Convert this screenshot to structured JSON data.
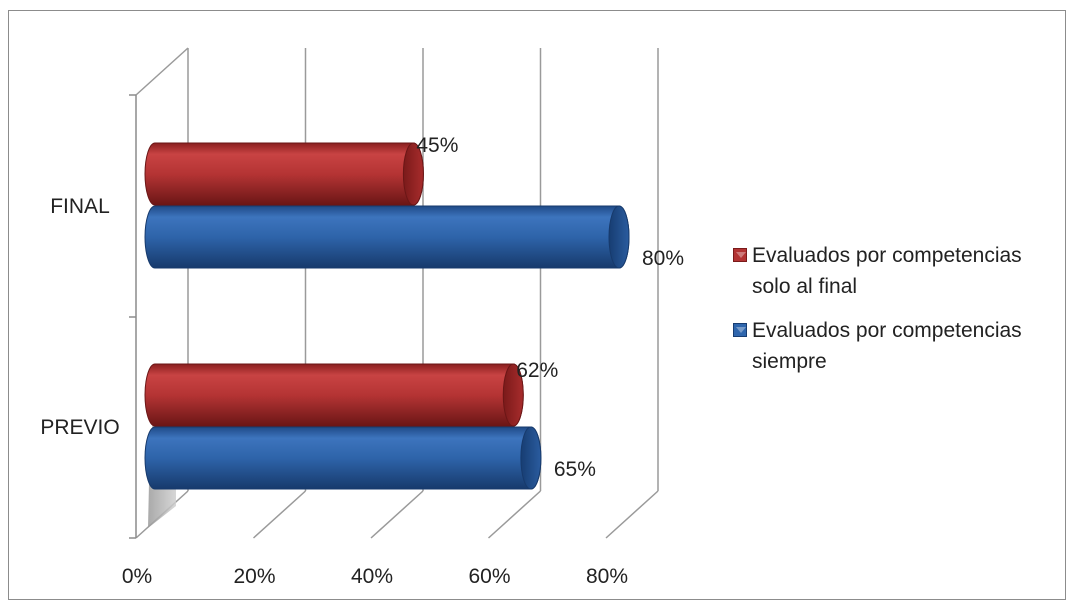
{
  "chart_data": {
    "type": "bar",
    "orientation": "horizontal",
    "style": "3d-cylinder",
    "categories": [
      "PREVIO",
      "FINAL"
    ],
    "series": [
      {
        "name": "Evaluados por competencias siempre",
        "color": "#2f66ad",
        "values": [
          0.65,
          0.8
        ],
        "labels": [
          "65%",
          "80%"
        ]
      },
      {
        "name": "Evaluados por competencias solo al final",
        "color": "#b23333",
        "values": [
          0.62,
          0.45
        ],
        "labels": [
          "62%",
          "45%"
        ]
      }
    ],
    "xlim": [
      0,
      0.8
    ],
    "xticks": [
      0,
      0.2,
      0.4,
      0.6,
      0.8
    ],
    "xtick_labels": [
      "0%",
      "20%",
      "40%",
      "60%",
      "80%"
    ],
    "grid": true,
    "legend_position": "right",
    "title": "",
    "xlabel": "",
    "ylabel": ""
  },
  "legend": {
    "items": [
      {
        "label": "Evaluados por competencias solo al final",
        "color": "#b23333"
      },
      {
        "label": "Evaluados por competencias siempre",
        "color": "#2f66ad"
      }
    ]
  }
}
